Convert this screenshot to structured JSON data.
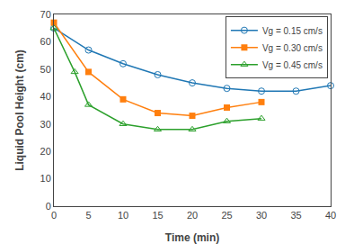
{
  "chart_data": {
    "type": "line",
    "x_label": "Time (min)",
    "y_label": "Liquid Pool Height (cm)",
    "series": [
      {
        "name": "Vg = 0.15 cm/s",
        "marker": "circle-open",
        "x": [
          0,
          5,
          10,
          15,
          20,
          25,
          30,
          35,
          40
        ],
        "values": [
          65,
          57,
          52,
          48,
          45,
          43,
          42,
          42,
          44
        ]
      },
      {
        "name": "Vg = 0.30 cm/s",
        "marker": "square",
        "x": [
          0,
          5,
          10,
          15,
          20,
          25,
          30
        ],
        "values": [
          67,
          49,
          39,
          34,
          33,
          36,
          38
        ]
      },
      {
        "name": "Vg = 0.45 cm/s",
        "marker": "triangle-up-open",
        "x": [
          0,
          3,
          5,
          10,
          15,
          20,
          25,
          30
        ],
        "values": [
          65,
          49,
          37,
          30,
          28,
          28,
          31,
          32
        ]
      }
    ],
    "xlim": [
      0,
      40
    ],
    "ylim": [
      0,
      70
    ],
    "xticks": [
      0,
      5,
      10,
      15,
      20,
      25,
      30,
      35,
      40
    ],
    "yticks": [
      0,
      10,
      20,
      30,
      40,
      50,
      60,
      70
    ],
    "grid": false,
    "legend": "upper right"
  }
}
